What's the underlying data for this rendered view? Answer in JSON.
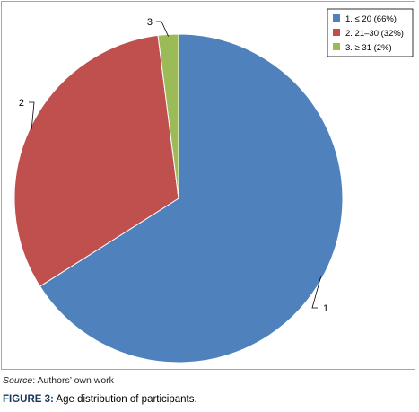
{
  "chart_data": {
    "type": "pie",
    "title": "",
    "categories": [
      "1. ≤ 20 (66%)",
      "2. 21–30 (32%)",
      "3. ≥ 31 (2%)"
    ],
    "values": [
      66,
      32,
      2
    ],
    "slice_labels": [
      "1",
      "2",
      "3"
    ],
    "colors": [
      "#4f81bd",
      "#c0504d",
      "#9bbb59"
    ],
    "legend_position": "top-right",
    "start_angle": "12 o'clock",
    "direction": "clockwise"
  },
  "source": {
    "label": "Source",
    "text": ": Authors’ own work"
  },
  "caption": {
    "label": "FIGURE 3:",
    "text": " Age distribution of participants."
  }
}
